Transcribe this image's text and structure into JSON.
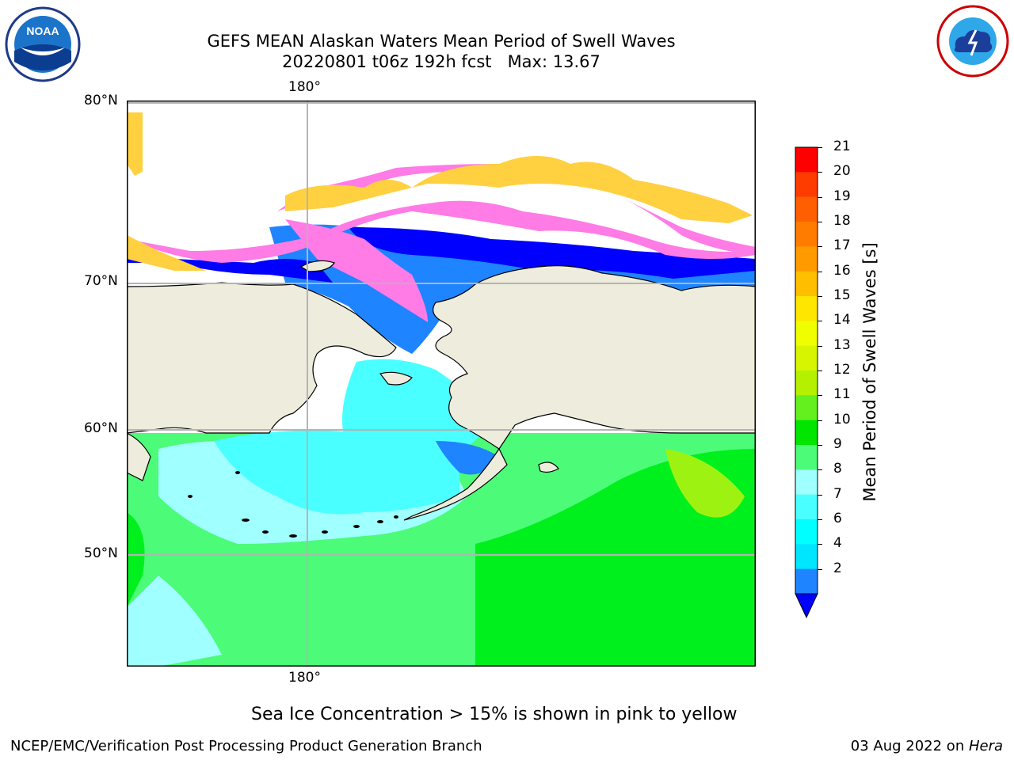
{
  "header": {
    "title_line1": "GEFS MEAN Alaskan Waters Mean Period of Swell Waves",
    "title_line2": "20220801 t06z 192h fcst   Max: 13.67"
  },
  "logos": {
    "left": {
      "name": "NOAA",
      "text": "NOAA"
    },
    "right": {
      "name": "NATIONAL WEATHER SERVICE"
    }
  },
  "map": {
    "lat_labels": [
      "80°N",
      "70°N",
      "60°N",
      "50°N"
    ],
    "lon_label_top": "180°",
    "lon_label_bottom": "180°",
    "colors": {
      "land": "#eeecdc",
      "ocean_cyan": "#4affff",
      "ocean_light": "#a0ffff",
      "ocean_green": "#4cfb78",
      "ocean_green2": "#00f01e",
      "ocean_yellowgreen": "#9ef212",
      "deep_blue": "#0000ff",
      "mid_blue": "#1e84ff",
      "ice_pink": "#ff7be6",
      "ice_yellow": "#ffd040"
    }
  },
  "colorbar": {
    "label": "Mean Period of Swell Waves [s]",
    "ticks": [
      "21",
      "20",
      "19",
      "18",
      "17",
      "16",
      "15",
      "14",
      "13",
      "12",
      "11",
      "10",
      "9",
      "8",
      "7",
      "6",
      "4",
      "2"
    ],
    "colors": [
      "#ff0000",
      "#ff3c00",
      "#ff5f00",
      "#ff7c00",
      "#ff9a00",
      "#ffbe00",
      "#ffe600",
      "#f0ff00",
      "#d7f500",
      "#b4f000",
      "#64f01e",
      "#00e600",
      "#4cfb78",
      "#a0ffff",
      "#4affff",
      "#00ffff",
      "#00e6ff",
      "#1e84ff"
    ],
    "extend_color": "#0000ff"
  },
  "footer": {
    "caption": "Sea Ice Concentration > 15% is shown in pink to yellow",
    "left": "NCEP/EMC/Verification Post Processing Product Generation Branch",
    "right_prefix": "03 Aug 2022 on ",
    "right_host": "Hera"
  }
}
